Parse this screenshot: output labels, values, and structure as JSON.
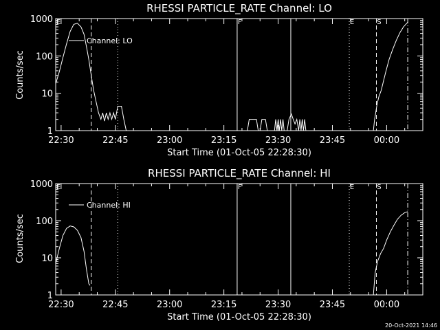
{
  "footer": {
    "timestamp": "20-Oct-2021 14:46"
  },
  "chart_data": [
    {
      "type": "line",
      "title": "RHESSI PARTICLE_RATE Channel: LO",
      "xlabel": "Start Time (01-Oct-05 22:28:30)",
      "ylabel": "Counts/sec",
      "yscale": "log",
      "ylim": [
        1,
        1000
      ],
      "xlim": [
        "22:28:30",
        "00:10:00"
      ],
      "x_ticks": [
        "22:30",
        "22:45",
        "23:00",
        "23:15",
        "23:30",
        "23:45",
        "00:00"
      ],
      "y_ticks": [
        "1",
        "10",
        "100",
        "1000"
      ],
      "grid": false,
      "legend": {
        "position": "top-left",
        "entries": [
          "Channel: LO"
        ]
      },
      "flags": [
        "E",
        "F",
        "E",
        "S"
      ],
      "event_lines": [
        {
          "time": "22:38:20",
          "style": "dashed"
        },
        {
          "time": "22:45:40",
          "style": "dotted"
        },
        {
          "time": "23:18:40",
          "style": "solid"
        },
        {
          "time": "23:33:30",
          "style": "solid"
        },
        {
          "time": "23:49:40",
          "style": "dotted"
        },
        {
          "time": "23:57:10",
          "style": "dashed"
        },
        {
          "time": "00:05:50",
          "style": "dashdot"
        }
      ],
      "series": [
        {
          "name": "Channel: LO",
          "segments": [
            [
              [
                "22:28:30",
                18
              ],
              [
                "22:29:30",
                38
              ],
              [
                "22:30:30",
                90
              ],
              [
                "22:31:30",
                210
              ],
              [
                "22:32:30",
                450
              ],
              [
                "22:33:30",
                700
              ],
              [
                "22:34:30",
                750
              ],
              [
                "22:35:30",
                600
              ],
              [
                "22:36:20",
                380
              ],
              [
                "22:37:00",
                180
              ],
              [
                "22:37:40",
                80
              ],
              [
                "22:38:20",
                30
              ],
              [
                "22:39:00",
                12
              ],
              [
                "22:39:40",
                6
              ],
              [
                "22:40:20",
                3
              ],
              [
                "22:41:00",
                2
              ],
              [
                "22:41:30",
                3
              ],
              [
                "22:42:00",
                1.8
              ],
              [
                "22:42:30",
                3
              ],
              [
                "22:43:00",
                2
              ],
              [
                "22:43:30",
                3
              ],
              [
                "22:44:00",
                2
              ],
              [
                "22:44:30",
                3
              ],
              [
                "22:45:00",
                2
              ],
              [
                "22:45:40",
                4.5
              ],
              [
                "22:46:40",
                4.5
              ],
              [
                "22:47:20",
                2
              ],
              [
                "22:48:00",
                1
              ]
            ],
            [
              [
                "23:21:30",
                1
              ],
              [
                "23:22:00",
                2
              ],
              [
                "23:24:00",
                2
              ],
              [
                "23:24:30",
                1
              ],
              [
                "23:25:00",
                1
              ],
              [
                "23:25:30",
                2
              ],
              [
                "23:26:30",
                2
              ],
              [
                "23:27:00",
                1
              ]
            ],
            [
              [
                "23:29:00",
                1
              ],
              [
                "23:29:20",
                2
              ],
              [
                "23:29:40",
                1
              ],
              [
                "23:30:00",
                2
              ],
              [
                "23:30:20",
                1
              ],
              [
                "23:30:40",
                2
              ],
              [
                "23:31:00",
                1
              ],
              [
                "23:31:20",
                2
              ],
              [
                "23:31:40",
                1
              ],
              [
                "23:32:30",
                1
              ],
              [
                "23:33:00",
                2
              ],
              [
                "23:33:40",
                2.8
              ],
              [
                "23:34:10",
                2
              ],
              [
                "23:34:40",
                1.5
              ],
              [
                "23:35:10",
                2
              ],
              [
                "23:35:40",
                1
              ],
              [
                "23:36:00",
                2
              ],
              [
                "23:36:20",
                1
              ],
              [
                "23:36:40",
                2
              ],
              [
                "23:37:00",
                1
              ],
              [
                "23:37:20",
                2
              ],
              [
                "23:37:40",
                1
              ]
            ],
            [
              [
                "23:56:20",
                1
              ],
              [
                "23:56:40",
                2
              ],
              [
                "23:57:20",
                5
              ],
              [
                "23:57:50",
                8
              ],
              [
                "23:58:30",
                12
              ],
              [
                "23:59:10",
                22
              ],
              [
                "23:59:50",
                40
              ],
              [
                "00:00:40",
                80
              ],
              [
                "00:01:40",
                150
              ],
              [
                "00:02:40",
                260
              ],
              [
                "00:03:40",
                420
              ],
              [
                "00:04:40",
                600
              ],
              [
                "00:05:50",
                800
              ]
            ]
          ]
        }
      ]
    },
    {
      "type": "line",
      "title": "RHESSI PARTICLE_RATE Channel: HI",
      "xlabel": "Start Time (01-Oct-05 22:28:30)",
      "ylabel": "Counts/sec",
      "yscale": "log",
      "ylim": [
        1,
        1000
      ],
      "xlim": [
        "22:28:30",
        "00:10:00"
      ],
      "x_ticks": [
        "22:30",
        "22:45",
        "23:00",
        "23:15",
        "23:30",
        "23:45",
        "00:00"
      ],
      "y_ticks": [
        "1",
        "10",
        "100",
        "1000"
      ],
      "grid": false,
      "legend": {
        "position": "top-left",
        "entries": [
          "Channel: HI"
        ]
      },
      "flags": [
        "E",
        "F",
        "E",
        "S"
      ],
      "event_lines": [
        {
          "time": "22:38:20",
          "style": "dashed"
        },
        {
          "time": "22:45:40",
          "style": "dotted"
        },
        {
          "time": "23:18:40",
          "style": "solid"
        },
        {
          "time": "23:33:30",
          "style": "solid"
        },
        {
          "time": "23:49:40",
          "style": "dotted"
        },
        {
          "time": "23:57:10",
          "style": "dashed"
        },
        {
          "time": "00:05:50",
          "style": "dashdot"
        }
      ],
      "series": [
        {
          "name": "Channel: HI",
          "segments": [
            [
              [
                "22:28:30",
                7
              ],
              [
                "22:29:30",
                18
              ],
              [
                "22:30:30",
                40
              ],
              [
                "22:31:30",
                62
              ],
              [
                "22:32:30",
                72
              ],
              [
                "22:33:30",
                68
              ],
              [
                "22:34:30",
                55
              ],
              [
                "22:35:30",
                35
              ],
              [
                "22:36:20",
                15
              ],
              [
                "22:37:00",
                5
              ],
              [
                "22:37:40",
                2
              ],
              [
                "22:38:00",
                1.8
              ]
            ],
            [
              [
                "23:56:20",
                1
              ],
              [
                "23:56:50",
                4
              ],
              [
                "23:57:30",
                8
              ],
              [
                "23:58:20",
                13
              ],
              [
                "23:59:10",
                18
              ],
              [
                "00:00:00",
                30
              ],
              [
                "00:01:00",
                50
              ],
              [
                "00:02:00",
                75
              ],
              [
                "00:03:00",
                110
              ],
              [
                "00:04:00",
                140
              ],
              [
                "00:05:00",
                165
              ],
              [
                "00:05:50",
                175
              ]
            ]
          ]
        }
      ]
    }
  ]
}
